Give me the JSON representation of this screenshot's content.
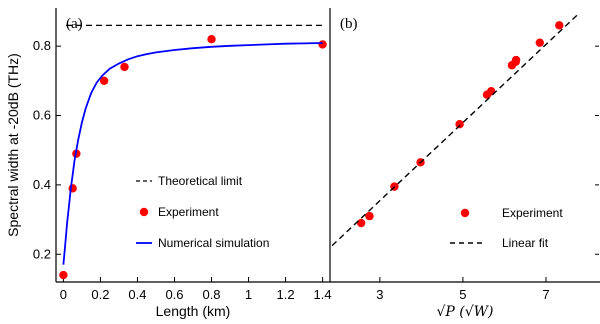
{
  "colors": {
    "experiment": "#ff0000",
    "simulation": "#0000ff",
    "reference": "#000000"
  },
  "chart_data": [
    {
      "panel": "(a)",
      "type": "line",
      "xlabel": "Length (km)",
      "ylabel": "Spectral width at -20dB (THz)",
      "xlim": [
        -0.04,
        1.44
      ],
      "ylim": [
        0.12,
        0.91
      ],
      "xticks": [
        0,
        0.2,
        0.4,
        0.6,
        0.8,
        1.0,
        1.2,
        1.4
      ],
      "xtick_labels": [
        "0",
        "0.2",
        "0.4",
        "0.6",
        "0.8",
        "1",
        "1.2",
        "1.4"
      ],
      "yticks": [
        0.2,
        0.4,
        0.6,
        0.8
      ],
      "ytick_labels": [
        "0.2",
        "0.4",
        "0.6",
        "0.8"
      ],
      "series": [
        {
          "name": "Theoretical limit",
          "kind": "hline",
          "style": "dashed",
          "y": 0.86
        },
        {
          "name": "Experiment",
          "kind": "scatter",
          "x": [
            0.0,
            0.05,
            0.07,
            0.22,
            0.33,
            0.8,
            1.4
          ],
          "y": [
            0.14,
            0.39,
            0.49,
            0.7,
            0.74,
            0.82,
            0.805
          ]
        },
        {
          "name": "Numerical simulation",
          "kind": "line",
          "x": [
            0.0,
            0.01,
            0.02,
            0.03,
            0.04,
            0.05,
            0.06,
            0.08,
            0.1,
            0.12,
            0.15,
            0.18,
            0.21,
            0.25,
            0.3,
            0.35,
            0.4,
            0.45,
            0.5,
            0.6,
            0.7,
            0.8,
            0.9,
            1.0,
            1.1,
            1.2,
            1.3,
            1.4
          ],
          "y": [
            0.17,
            0.23,
            0.29,
            0.34,
            0.39,
            0.43,
            0.47,
            0.53,
            0.58,
            0.62,
            0.665,
            0.695,
            0.715,
            0.735,
            0.75,
            0.762,
            0.771,
            0.777,
            0.782,
            0.789,
            0.794,
            0.798,
            0.801,
            0.803,
            0.805,
            0.807,
            0.808,
            0.809
          ]
        }
      ],
      "legend": {
        "placement": "lower-right"
      }
    },
    {
      "panel": "(b)",
      "type": "scatter",
      "xlabel": "√P (√W)",
      "xlim": [
        1.8,
        8.3
      ],
      "ylim": [
        0.12,
        0.91
      ],
      "xticks": [
        3,
        5,
        7
      ],
      "xtick_labels": [
        "3",
        "5",
        "7"
      ],
      "series": [
        {
          "name": "Experiment",
          "kind": "scatter",
          "x": [
            2.55,
            2.75,
            3.35,
            3.98,
            4.92,
            5.58,
            5.68,
            6.18,
            6.27,
            6.28,
            6.85,
            7.32
          ],
          "y": [
            0.29,
            0.31,
            0.395,
            0.465,
            0.575,
            0.66,
            0.67,
            0.745,
            0.755,
            0.76,
            0.81,
            0.86
          ]
        },
        {
          "name": "Linear fit",
          "kind": "line",
          "style": "dashed",
          "x": [
            1.85,
            7.8
          ],
          "y": [
            0.225,
            0.895
          ]
        }
      ],
      "legend": {
        "placement": "lower-right"
      }
    }
  ]
}
